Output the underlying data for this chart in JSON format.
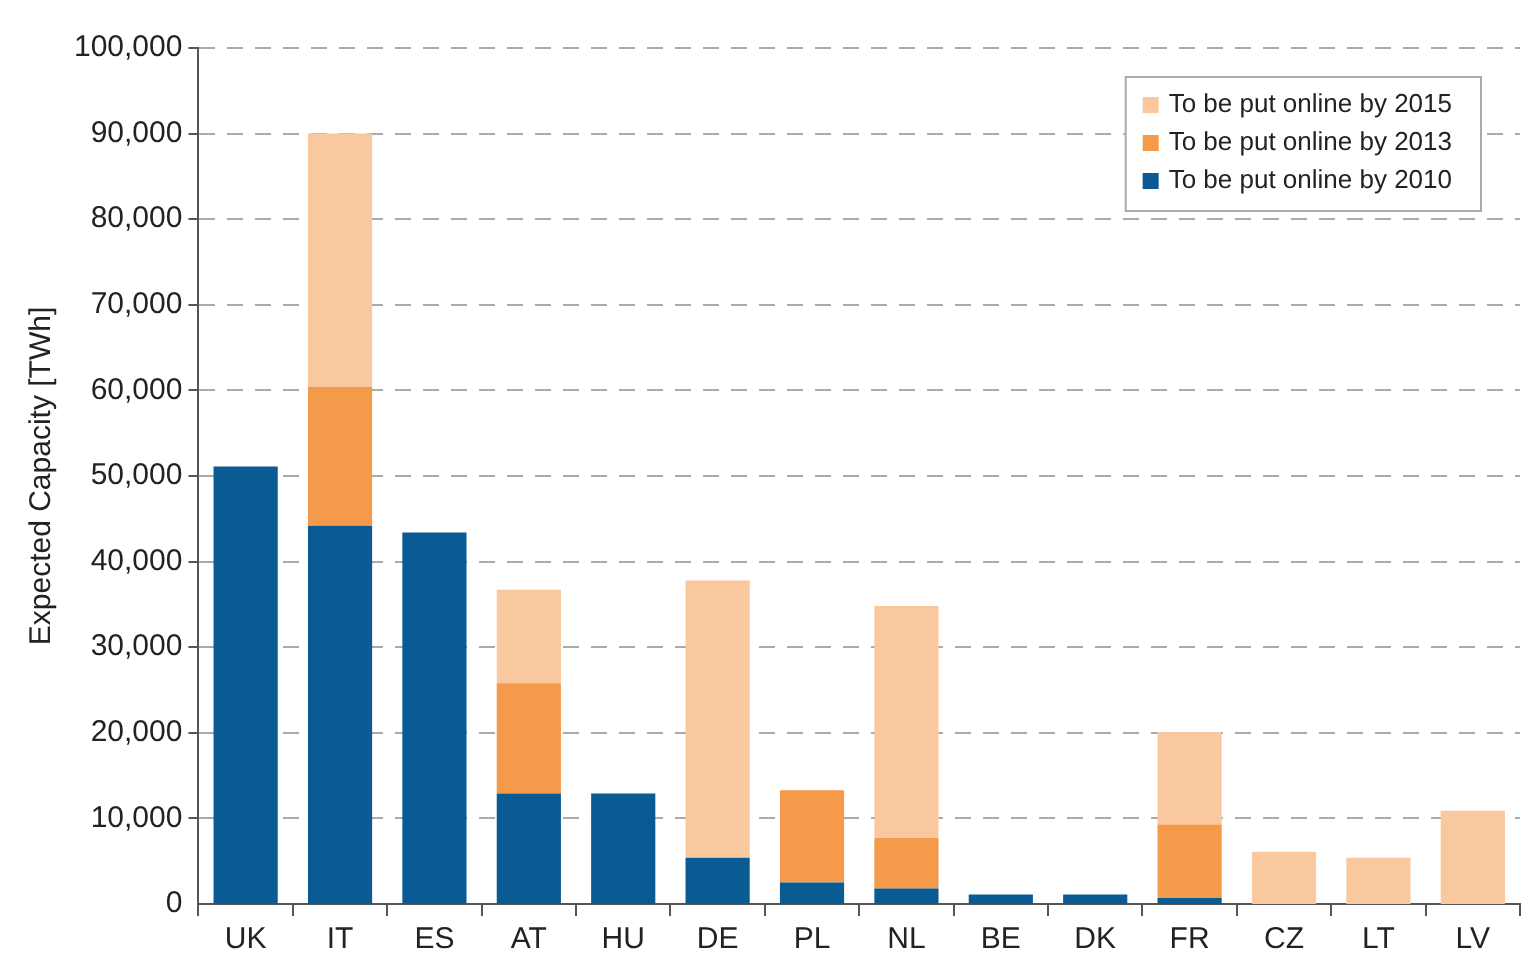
{
  "chart_data": {
    "type": "bar",
    "ylabel": "Expected Capacity [TWh]",
    "stacked": true,
    "categories": [
      "UK",
      "IT",
      "ES",
      "AT",
      "HU",
      "DE",
      "PL",
      "NL",
      "BE",
      "DK",
      "FR",
      "CZ",
      "LT",
      "LV"
    ],
    "series": [
      {
        "name": "To be put online by 2010",
        "color": "#0a5a94",
        "values": [
          51100,
          44200,
          43400,
          12900,
          12900,
          5400,
          2500,
          1800,
          1100,
          1100,
          700,
          0,
          0,
          0
        ]
      },
      {
        "name": "To be put online by 2013",
        "color": "#f5994a",
        "values": [
          0,
          16200,
          0,
          12900,
          0,
          0,
          10800,
          5900,
          0,
          0,
          8600,
          0,
          0,
          0
        ]
      },
      {
        "name": "To be put online by 2015",
        "color": "#fac89e",
        "values": [
          0,
          29600,
          0,
          10900,
          0,
          32400,
          0,
          27100,
          0,
          0,
          10800,
          6100,
          5400,
          10900
        ]
      }
    ],
    "ylim": [
      0,
      100000
    ],
    "yticks": [
      {
        "value": 0,
        "label": "0"
      },
      {
        "value": 10000,
        "label": "10,000"
      },
      {
        "value": 20000,
        "label": "20,000"
      },
      {
        "value": 30000,
        "label": "30,000"
      },
      {
        "value": 40000,
        "label": "40,000"
      },
      {
        "value": 50000,
        "label": "50,000"
      },
      {
        "value": 60000,
        "label": "60,000"
      },
      {
        "value": 70000,
        "label": "70,000"
      },
      {
        "value": 80000,
        "label": "80,000"
      },
      {
        "value": 90000,
        "label": "90,000"
      },
      {
        "value": 100000,
        "label": "100,000"
      }
    ],
    "grid": "y",
    "legend": "top right"
  }
}
